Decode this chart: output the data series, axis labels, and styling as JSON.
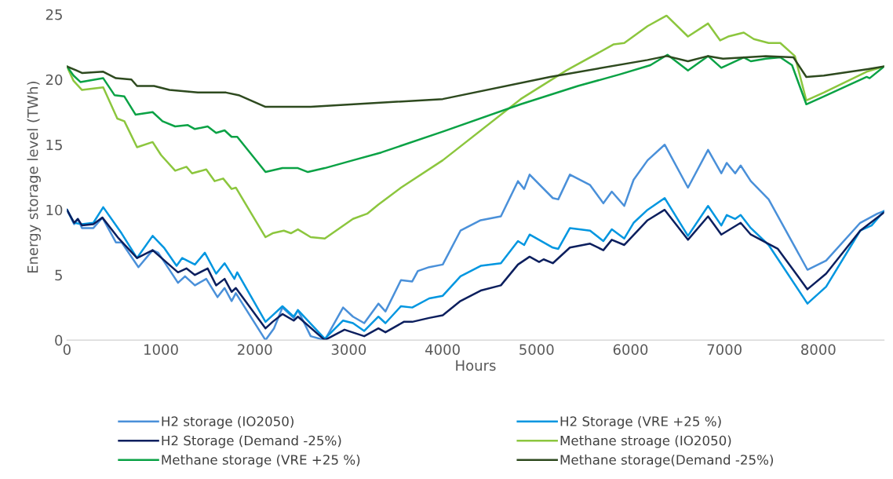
{
  "chart_data": {
    "type": "line",
    "xlabel": "Hours",
    "ylabel": "Energy storage level (TWh)",
    "xlim": [
      0,
      8700
    ],
    "xticks": [
      0,
      1000,
      2000,
      3000,
      4000,
      5000,
      6000,
      7000,
      8000
    ],
    "ylim": [
      0,
      25
    ],
    "yticks": [
      0,
      5,
      10,
      15,
      20,
      25
    ],
    "grid": false,
    "legend": "bottom",
    "marker": "none",
    "line_style": "solid",
    "series": [
      {
        "name": "H2 storage (IO2050)",
        "color": "#4a90d9",
        "x": [
          0,
          76,
          115,
          160,
          281,
          377,
          521,
          581,
          761,
          912,
          972,
          1182,
          1257,
          1362,
          1483,
          1603,
          1678,
          1753,
          1798,
          2114,
          2204,
          2294,
          2414,
          2459,
          2595,
          2745,
          2940,
          3045,
          3165,
          3316,
          3391,
          3556,
          3676,
          3736,
          3857,
          4001,
          4190,
          4405,
          4620,
          4802,
          4868,
          4926,
          5173,
          5231,
          5355,
          5570,
          5711,
          5801,
          5934,
          6033,
          6182,
          6364,
          6612,
          6826,
          6967,
          7025,
          7115,
          7173,
          7281,
          7471,
          7884,
          8083,
          8446,
          8628,
          8700
        ],
        "values": [
          10.0,
          8.9,
          9.3,
          8.6,
          8.6,
          9.4,
          7.5,
          7.5,
          5.6,
          6.9,
          6.7,
          4.4,
          4.9,
          4.2,
          4.7,
          3.3,
          4.0,
          3.0,
          3.6,
          0.0,
          0.9,
          2.5,
          1.7,
          2.3,
          0.3,
          0.0,
          2.5,
          1.8,
          1.3,
          2.8,
          2.2,
          4.6,
          4.5,
          5.3,
          5.6,
          5.8,
          8.4,
          9.2,
          9.5,
          12.2,
          11.6,
          12.7,
          10.9,
          10.8,
          12.7,
          11.9,
          10.5,
          11.4,
          10.3,
          12.3,
          13.8,
          15.0,
          11.7,
          14.6,
          12.8,
          13.6,
          12.8,
          13.4,
          12.2,
          10.8,
          5.4,
          6.1,
          9.0,
          9.7,
          9.9
        ]
      },
      {
        "name": "H2 Storage (VRE +25 %)",
        "color": "#0096e0",
        "x": [
          0,
          76,
          160,
          281,
          386,
          581,
          746,
          912,
          1032,
          1167,
          1227,
          1362,
          1468,
          1588,
          1678,
          1783,
          1813,
          2114,
          2189,
          2294,
          2414,
          2459,
          2745,
          2940,
          3045,
          3165,
          3316,
          3391,
          3556,
          3676,
          3857,
          4001,
          4190,
          4405,
          4620,
          4802,
          4868,
          4926,
          5173,
          5231,
          5355,
          5570,
          5711,
          5801,
          5934,
          6033,
          6182,
          6364,
          6612,
          6826,
          6967,
          7025,
          7115,
          7173,
          7281,
          7471,
          7884,
          8083,
          8446,
          8567,
          8700
        ],
        "values": [
          10.0,
          9.0,
          8.9,
          9.0,
          10.2,
          8.2,
          6.3,
          8.0,
          7.1,
          5.7,
          6.3,
          5.8,
          6.7,
          5.1,
          5.9,
          4.7,
          5.2,
          1.4,
          1.9,
          2.6,
          1.8,
          2.3,
          0.1,
          1.5,
          1.3,
          0.7,
          1.8,
          1.3,
          2.6,
          2.5,
          3.2,
          3.4,
          4.9,
          5.7,
          5.9,
          7.6,
          7.3,
          8.1,
          7.1,
          7.0,
          8.6,
          8.4,
          7.6,
          8.5,
          7.8,
          9.0,
          10.0,
          10.9,
          8.0,
          10.3,
          8.8,
          9.6,
          9.3,
          9.6,
          8.6,
          7.3,
          2.8,
          4.1,
          8.4,
          8.8,
          9.9
        ]
      },
      {
        "name": "H2 Storage (Demand -25%)",
        "color": "#0c1f5e",
        "x": [
          0,
          76,
          115,
          160,
          281,
          377,
          551,
          746,
          912,
          1182,
          1272,
          1362,
          1498,
          1588,
          1678,
          1753,
          1798,
          2114,
          2189,
          2294,
          2414,
          2459,
          2745,
          2955,
          3165,
          3316,
          3391,
          3586,
          3676,
          3857,
          4001,
          4190,
          4405,
          4620,
          4802,
          4926,
          5027,
          5075,
          5173,
          5355,
          5570,
          5711,
          5801,
          5934,
          6182,
          6364,
          6612,
          6826,
          6967,
          7173,
          7281,
          7569,
          7884,
          8083,
          8446,
          8700
        ],
        "values": [
          10.0,
          9.0,
          9.3,
          8.8,
          8.9,
          9.4,
          7.8,
          6.3,
          6.9,
          5.2,
          5.5,
          5.0,
          5.5,
          4.2,
          4.7,
          3.7,
          4.0,
          0.9,
          1.4,
          2.0,
          1.5,
          1.8,
          0.0,
          0.8,
          0.3,
          0.9,
          0.6,
          1.4,
          1.4,
          1.7,
          1.9,
          3.0,
          3.8,
          4.2,
          5.8,
          6.4,
          6.0,
          6.2,
          5.9,
          7.1,
          7.4,
          6.9,
          7.7,
          7.3,
          9.2,
          10.0,
          7.7,
          9.5,
          8.1,
          9.0,
          8.1,
          7.0,
          3.9,
          5.1,
          8.4,
          9.8
        ]
      },
      {
        "name": "Methane stroage (IO2050)",
        "color": "#8cc63e",
        "x": [
          0,
          70,
          160,
          386,
          536,
          611,
          746,
          912,
          1002,
          1152,
          1272,
          1332,
          1483,
          1573,
          1663,
          1753,
          1798,
          2114,
          2189,
          2309,
          2384,
          2459,
          2595,
          2745,
          3045,
          3196,
          3316,
          3556,
          4001,
          4831,
          5318,
          5822,
          5934,
          6182,
          6384,
          6612,
          6826,
          6955,
          7040,
          7206,
          7313,
          7471,
          7595,
          7750,
          7872,
          8058,
          8515,
          8700
        ],
        "values": [
          21.0,
          19.9,
          19.2,
          19.4,
          17.0,
          16.8,
          14.8,
          15.2,
          14.2,
          13.0,
          13.3,
          12.8,
          13.1,
          12.2,
          12.4,
          11.6,
          11.7,
          7.9,
          8.2,
          8.4,
          8.2,
          8.5,
          7.9,
          7.8,
          9.3,
          9.7,
          10.4,
          11.7,
          13.8,
          18.5,
          20.7,
          22.7,
          22.8,
          24.1,
          24.9,
          23.3,
          24.3,
          23.0,
          23.3,
          23.6,
          23.1,
          22.8,
          22.8,
          21.8,
          18.4,
          19.0,
          20.6,
          21.0
        ]
      },
      {
        "name": "Methane storage (VRE +25 %)",
        "color": "#0aa245",
        "x": [
          0,
          70,
          145,
          386,
          506,
          611,
          731,
          912,
          1017,
          1152,
          1287,
          1362,
          1498,
          1588,
          1678,
          1753,
          1813,
          2114,
          2294,
          2459,
          2565,
          2745,
          3045,
          3346,
          4001,
          4831,
          5440,
          5889,
          6212,
          6394,
          6612,
          6826,
          6967,
          7206,
          7281,
          7441,
          7595,
          7720,
          7872,
          8058,
          8515,
          8546,
          8700
        ],
        "values": [
          21.0,
          20.3,
          19.8,
          20.1,
          18.8,
          18.7,
          17.3,
          17.5,
          16.8,
          16.4,
          16.5,
          16.2,
          16.4,
          15.9,
          16.1,
          15.6,
          15.6,
          12.9,
          13.2,
          13.2,
          12.9,
          13.2,
          13.8,
          14.4,
          16.0,
          18.1,
          19.5,
          20.4,
          21.1,
          21.9,
          20.7,
          21.8,
          20.9,
          21.7,
          21.4,
          21.6,
          21.7,
          21.1,
          18.1,
          18.7,
          20.2,
          20.1,
          21.0
        ]
      },
      {
        "name": "Methane storage(Demand -25%)",
        "color": "#2e4a1f",
        "x": [
          0,
          100,
          160,
          386,
          521,
          686,
          746,
          927,
          1092,
          1393,
          1693,
          1828,
          2114,
          2595,
          4001,
          5142,
          6182,
          6384,
          6612,
          6826,
          6985,
          7441,
          7735,
          7872,
          8058,
          8530,
          8700
        ],
        "values": [
          21.0,
          20.7,
          20.5,
          20.6,
          20.1,
          20.0,
          19.5,
          19.5,
          19.2,
          19.0,
          19.0,
          18.8,
          17.9,
          17.9,
          18.5,
          20.2,
          21.5,
          21.8,
          21.4,
          21.8,
          21.6,
          21.8,
          21.7,
          20.2,
          20.3,
          20.8,
          21.0
        ]
      }
    ]
  }
}
